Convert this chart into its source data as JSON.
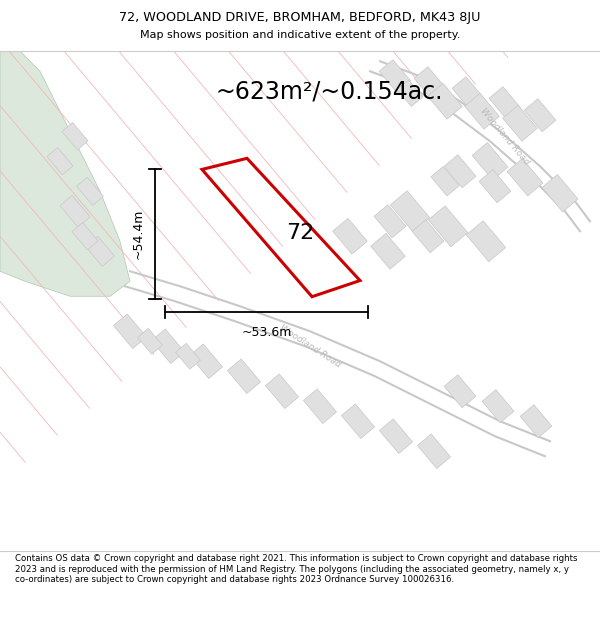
{
  "title_line1": "72, WOODLAND DRIVE, BROMHAM, BEDFORD, MK43 8JU",
  "title_line2": "Map shows position and indicative extent of the property.",
  "area_text": "~623m²/~0.154ac.",
  "measurement_h": "~53.6m",
  "measurement_v": "~54.4m",
  "property_number": "72",
  "footer_text": "Contains OS data © Crown copyright and database right 2021. This information is subject to Crown copyright and database rights 2023 and is reproduced with the permission of HM Land Registry. The polygons (including the associated geometry, namely x, y co-ordinates) are subject to Crown copyright and database rights 2023 Ordnance Survey 100026316.",
  "map_bg": "#ffffff",
  "green_color": "#dce8dc",
  "plot_line_color": "#f0b8b8",
  "building_fill": "#e0e0e0",
  "building_line": "#c8c8c8",
  "road_line_color": "#c8c8c8",
  "highlight_color": "#cc0000",
  "road_label_color": "#bbbbbb",
  "fig_width": 6.0,
  "fig_height": 6.25,
  "dpi": 100
}
